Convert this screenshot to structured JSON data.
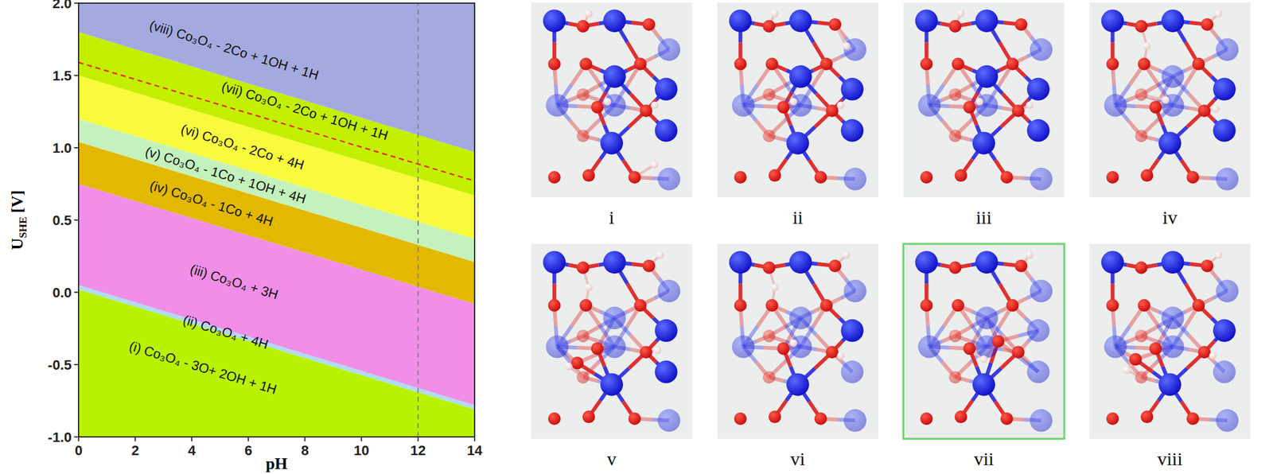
{
  "chart_data": {
    "type": "phase_diagram",
    "xlabel": "pH",
    "ylabel": {
      "main": "U",
      "sub": "SHE",
      "unit": "[V]"
    },
    "xlim": [
      0,
      14
    ],
    "ylim": [
      -1,
      2
    ],
    "xticks": [
      0,
      2,
      4,
      6,
      8,
      10,
      12,
      14
    ],
    "yticks": [
      {
        "value": -1,
        "label": "-1.0"
      },
      -0.5,
      {
        "value": 0,
        "label": "0.0"
      },
      0.5,
      {
        "value": 1,
        "label": "1.0"
      },
      1.5,
      {
        "value": 2,
        "label": "2.0"
      }
    ],
    "boundary_x": [
      0,
      14
    ],
    "regions": [
      {
        "label": "(i) Co₃O₄ - 3O+ 2OH + 1H",
        "color": "#b8f200",
        "upper": [
          0.02,
          -0.81
        ]
      },
      {
        "label": "(ii) Co₃O₄ + 4H",
        "color": "#b0dcf0",
        "upper": [
          0.05,
          -0.78
        ]
      },
      {
        "label": "(iii) Co₃O₄ + 3H",
        "color": "#f08ee8",
        "upper": [
          0.75,
          -0.08
        ]
      },
      {
        "label": "(iv) Co₃O₄ - 1Co + 4H",
        "color": "#e3b800",
        "upper": [
          1.04,
          0.21
        ]
      },
      {
        "label": "(v) Co₃O₄ - 1Co + 1OH + 4H",
        "color": "#c4f2bc",
        "upper": [
          1.2,
          0.37
        ]
      },
      {
        "label": "(vi) Co₃O₄ - 2Co + 4H",
        "color": "#fafa3c",
        "upper": [
          1.5,
          0.67
        ]
      },
      {
        "label": "(vii) Co₃O₄ - 2Co + 1OH + 1H",
        "color": "#c2f000",
        "upper": [
          1.8,
          0.97
        ]
      },
      {
        "label": "(viii) Co₃O₄ - 2Co + 1OH + 1H",
        "color": "#a4aadf",
        "upper": null
      }
    ],
    "reference_lines": [
      {
        "x": 12,
        "color": "#8c8c8c",
        "line_style": "dashed"
      },
      {
        "x": [
          0,
          14
        ],
        "y": [
          1.59,
          0.77
        ],
        "color": "#e8231e",
        "line_style": "dashed"
      }
    ]
  },
  "structures": {
    "panels": [
      {
        "label": "i"
      },
      {
        "label": "ii"
      },
      {
        "label": "iii"
      },
      {
        "label": "iv"
      },
      {
        "label": "v"
      },
      {
        "label": "vi"
      },
      {
        "label": "vii",
        "highlighted": true
      },
      {
        "label": "viii"
      }
    ]
  }
}
